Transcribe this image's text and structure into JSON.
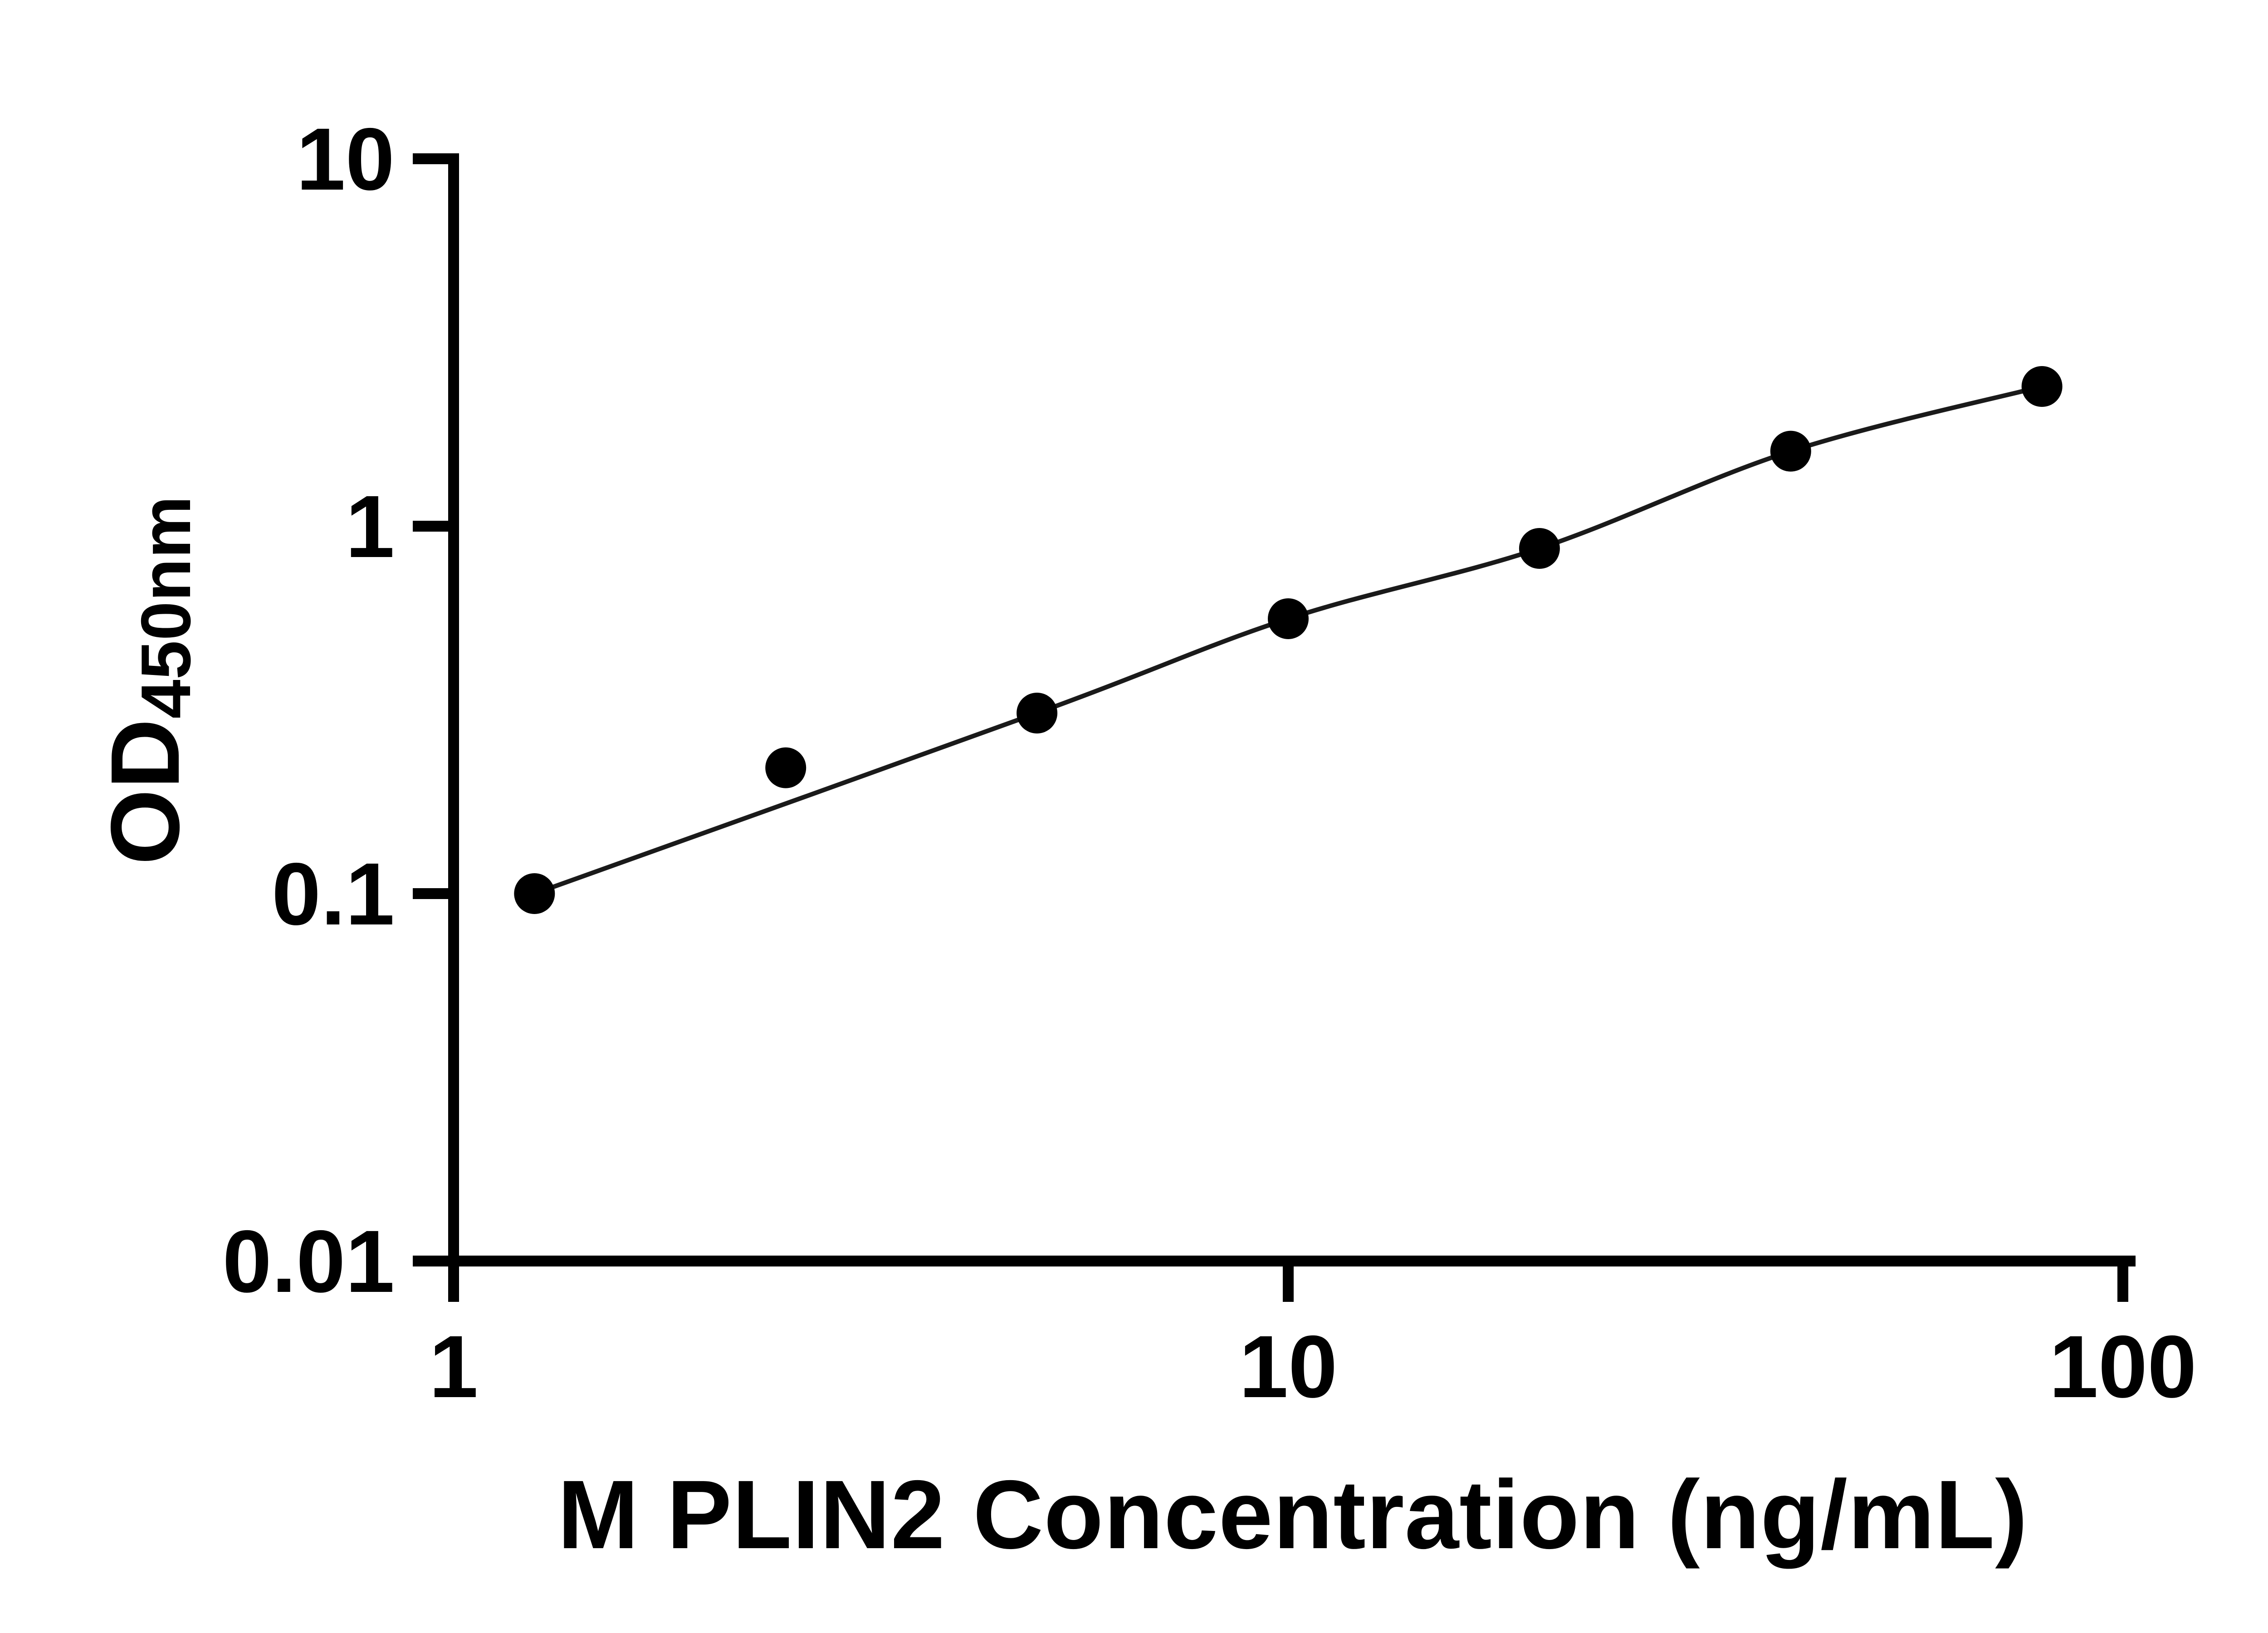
{
  "chart_data": {
    "type": "scatter",
    "title": "",
    "xlabel": "M PLIN2 Concentration (ng/mL)",
    "ylabel_main": "OD",
    "ylabel_sub": "450nm",
    "x": [
      1.25,
      2.5,
      5,
      10,
      20,
      40,
      80
    ],
    "y": [
      0.1,
      0.22,
      0.31,
      0.56,
      0.87,
      1.6,
      2.4
    ],
    "x_scale": "log",
    "y_scale": "log",
    "xlim": [
      1,
      100
    ],
    "ylim": [
      0.01,
      10
    ],
    "x_ticks": [
      1,
      10,
      100
    ],
    "x_tick_labels": [
      "1",
      "10",
      "100"
    ],
    "y_ticks": [
      0.01,
      0.1,
      1,
      10
    ],
    "y_tick_labels": [
      "0.01",
      "0.1",
      "1",
      "10"
    ],
    "grid": false,
    "legend": null,
    "trend_line": true,
    "trend_skip_indices": [
      1
    ],
    "colors": {
      "background": "#ffffff",
      "axis": "#000000",
      "marker": "#000000",
      "line": "#1a1a1a",
      "text": "#000000"
    }
  }
}
